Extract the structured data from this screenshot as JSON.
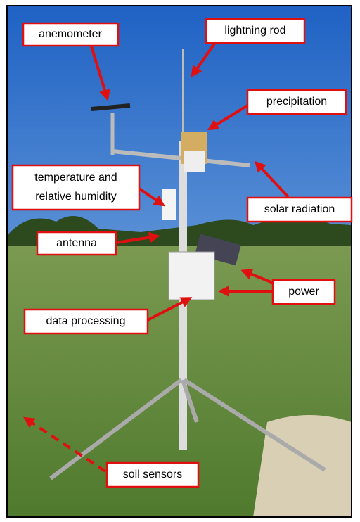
{
  "labels": {
    "anemometer": "anemometer",
    "lightning_rod": "lightning rod",
    "precipitation": "precipitation",
    "temperature": [
      "temperature and",
      "relative humidity"
    ],
    "solar_radiation": "solar radiation",
    "antenna": "antenna",
    "power": "power",
    "data_processing": "data processing",
    "soil_sensors": "soil sensors"
  }
}
